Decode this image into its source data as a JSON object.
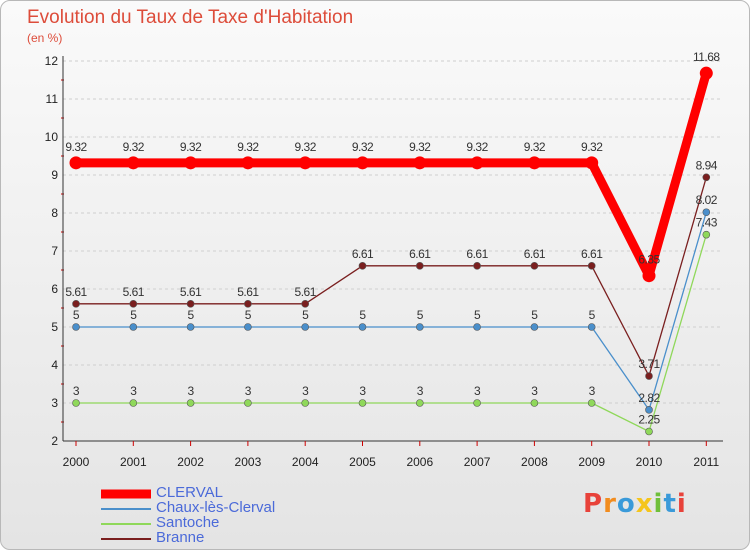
{
  "title": "Evolution du Taux de Taxe d'Habitation",
  "unit_label": "(en %)",
  "logo_text": "Proxiti",
  "logo_colors": [
    "#e8423a",
    "#f28c1e",
    "#3a9ad9",
    "#f5c51c",
    "#6fbf3a",
    "#3a9ad9",
    "#e8423a"
  ],
  "chart_data": {
    "type": "line",
    "x": [
      "2000",
      "2001",
      "2002",
      "2003",
      "2004",
      "2005",
      "2006",
      "2007",
      "2008",
      "2009",
      "2010",
      "2011"
    ],
    "ylim": [
      2,
      12
    ],
    "yticks": [
      "2",
      "3",
      "4",
      "5",
      "6",
      "7",
      "8",
      "9",
      "10",
      "11",
      "12"
    ],
    "grid": "horizontal dashed",
    "legend_position": "bottom-left",
    "series": [
      {
        "name": "CLERVAL",
        "color": "#ff0000",
        "values": [
          9.32,
          9.32,
          9.32,
          9.32,
          9.32,
          9.32,
          9.32,
          9.32,
          9.32,
          9.32,
          6.35,
          11.68
        ],
        "labels": [
          "9.32",
          "9.32",
          "9.32",
          "9.32",
          "9.32",
          "9.32",
          "9.32",
          "9.32",
          "9.32",
          "9.32",
          "6.35",
          "11.68"
        ]
      },
      {
        "name": "Chaux-lès-Clerval",
        "color": "#4a8fcb",
        "values": [
          5,
          5,
          5,
          5,
          5,
          5,
          5,
          5,
          5,
          5,
          2.82,
          8.02
        ],
        "labels": [
          "5",
          "5",
          "5",
          "5",
          "5",
          "5",
          "5",
          "5",
          "5",
          "5",
          "2.82",
          "8.02"
        ]
      },
      {
        "name": "Santoche",
        "color": "#8fd85a",
        "values": [
          3,
          3,
          3,
          3,
          3,
          3,
          3,
          3,
          3,
          3,
          2.25,
          7.43
        ],
        "labels": [
          "3",
          "3",
          "3",
          "3",
          "3",
          "3",
          "3",
          "3",
          "3",
          "3",
          "2.25",
          "7.43"
        ]
      },
      {
        "name": "Branne",
        "color": "#7a1f1f",
        "values": [
          5.61,
          5.61,
          5.61,
          5.61,
          5.61,
          6.61,
          6.61,
          6.61,
          6.61,
          6.61,
          3.71,
          8.94
        ],
        "labels": [
          "5.61",
          "5.61",
          "5.61",
          "5.61",
          "5.61",
          "6.61",
          "6.61",
          "6.61",
          "6.61",
          "6.61",
          "3.71",
          "8.94"
        ]
      }
    ]
  }
}
